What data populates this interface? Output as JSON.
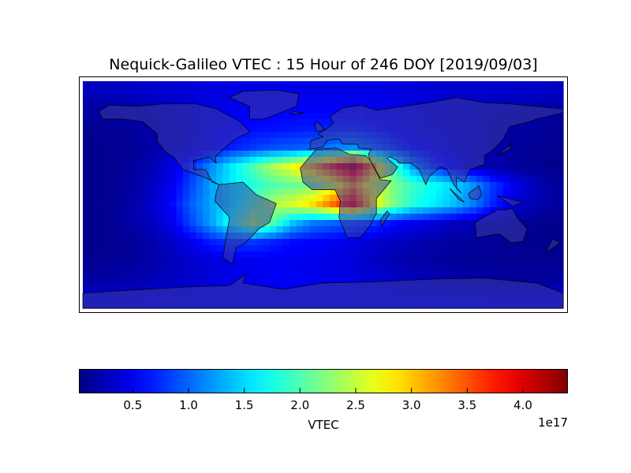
{
  "chart_data": {
    "type": "heatmap",
    "title": "Nequick-Galileo VTEC : 15 Hour of 246 DOY [2019/09/03]",
    "projection": "cylindrical world map with coastlines and country borders",
    "lon_centers": [
      -172.5,
      -157.5,
      -142.5,
      -127.5,
      -112.5,
      -97.5,
      -82.5,
      -67.5,
      -52.5,
      -37.5,
      -22.5,
      -7.5,
      7.5,
      22.5,
      37.5,
      52.5,
      67.5,
      82.5,
      97.5,
      112.5,
      127.5,
      142.5,
      157.5,
      172.5
    ],
    "lat_centers": [
      82.5,
      67.5,
      52.5,
      37.5,
      22.5,
      7.5,
      -7.5,
      -22.5,
      -37.5,
      -52.5,
      -67.5,
      -82.5
    ],
    "values_unit": "1e17",
    "values": [
      [
        0.3,
        0.3,
        0.32,
        0.35,
        0.38,
        0.4,
        0.42,
        0.45,
        0.45,
        0.45,
        0.45,
        0.45,
        0.45,
        0.45,
        0.45,
        0.42,
        0.4,
        0.38,
        0.36,
        0.35,
        0.35,
        0.34,
        0.33,
        0.32
      ],
      [
        0.15,
        0.18,
        0.2,
        0.25,
        0.3,
        0.38,
        0.45,
        0.5,
        0.52,
        0.55,
        0.55,
        0.55,
        0.55,
        0.55,
        0.52,
        0.48,
        0.42,
        0.38,
        0.35,
        0.3,
        0.25,
        0.22,
        0.2,
        0.18
      ],
      [
        0.1,
        0.12,
        0.15,
        0.2,
        0.28,
        0.38,
        0.48,
        0.55,
        0.6,
        0.62,
        0.65,
        0.68,
        0.7,
        0.7,
        0.65,
        0.55,
        0.45,
        0.4,
        0.35,
        0.3,
        0.22,
        0.18,
        0.14,
        0.12
      ],
      [
        0.08,
        0.1,
        0.12,
        0.18,
        0.28,
        0.4,
        0.55,
        0.7,
        0.8,
        0.9,
        0.95,
        1.0,
        1.1,
        1.2,
        1.0,
        0.8,
        0.6,
        0.5,
        0.4,
        0.3,
        0.22,
        0.15,
        0.12,
        0.1
      ],
      [
        0.08,
        0.1,
        0.15,
        0.25,
        0.45,
        0.8,
        1.2,
        1.6,
        2.0,
        2.4,
        2.7,
        3.1,
        3.7,
        4.2,
        3.2,
        2.0,
        1.2,
        0.8,
        0.5,
        0.3,
        0.2,
        0.15,
        0.1,
        0.08
      ],
      [
        0.08,
        0.1,
        0.15,
        0.3,
        0.5,
        0.9,
        1.3,
        1.6,
        1.8,
        2.0,
        2.1,
        2.2,
        2.6,
        3.2,
        2.6,
        2.2,
        1.9,
        1.7,
        1.5,
        1.2,
        0.8,
        0.5,
        0.3,
        0.15
      ],
      [
        0.08,
        0.12,
        0.2,
        0.35,
        0.6,
        1.0,
        1.3,
        1.6,
        2.0,
        2.4,
        2.6,
        2.9,
        3.4,
        3.9,
        2.8,
        2.2,
        1.8,
        1.6,
        1.4,
        1.1,
        0.7,
        0.4,
        0.25,
        0.15
      ],
      [
        0.08,
        0.1,
        0.2,
        0.3,
        0.5,
        0.9,
        1.3,
        1.8,
        2.4,
        2.0,
        1.4,
        1.1,
        1.0,
        0.9,
        0.8,
        0.6,
        0.5,
        0.4,
        0.3,
        0.25,
        0.2,
        0.15,
        0.1,
        0.08
      ],
      [
        0.08,
        0.1,
        0.12,
        0.2,
        0.35,
        0.5,
        0.7,
        0.8,
        0.8,
        0.7,
        0.6,
        0.55,
        0.5,
        0.45,
        0.35,
        0.3,
        0.25,
        0.2,
        0.16,
        0.14,
        0.12,
        0.1,
        0.08,
        0.08
      ],
      [
        0.1,
        0.12,
        0.15,
        0.2,
        0.28,
        0.35,
        0.42,
        0.48,
        0.5,
        0.5,
        0.5,
        0.48,
        0.45,
        0.4,
        0.32,
        0.25,
        0.2,
        0.16,
        0.14,
        0.12,
        0.11,
        0.1,
        0.1,
        0.1
      ],
      [
        0.15,
        0.18,
        0.2,
        0.25,
        0.3,
        0.35,
        0.42,
        0.48,
        0.5,
        0.52,
        0.52,
        0.5,
        0.48,
        0.45,
        0.4,
        0.35,
        0.3,
        0.25,
        0.22,
        0.2,
        0.18,
        0.16,
        0.15,
        0.15
      ],
      [
        0.4,
        0.4,
        0.4,
        0.42,
        0.42,
        0.44,
        0.45,
        0.46,
        0.47,
        0.48,
        0.48,
        0.48,
        0.48,
        0.47,
        0.46,
        0.45,
        0.44,
        0.43,
        0.42,
        0.42,
        0.41,
        0.4,
        0.4,
        0.4
      ]
    ],
    "colormap": "jet",
    "colorbar": {
      "label": "VTEC",
      "offset_label": "1e17",
      "range": [
        0.02,
        4.4
      ],
      "ticks": [
        0.5,
        1.0,
        1.5,
        2.0,
        2.5,
        3.0,
        3.5,
        4.0
      ],
      "tick_labels": [
        "0.5",
        "1.0",
        "1.5",
        "2.0",
        "2.5",
        "3.0",
        "3.5",
        "4.0"
      ],
      "orientation": "horizontal",
      "placement": "bottom"
    },
    "land_overlay_color": "#3c3ca0",
    "grid": false
  }
}
